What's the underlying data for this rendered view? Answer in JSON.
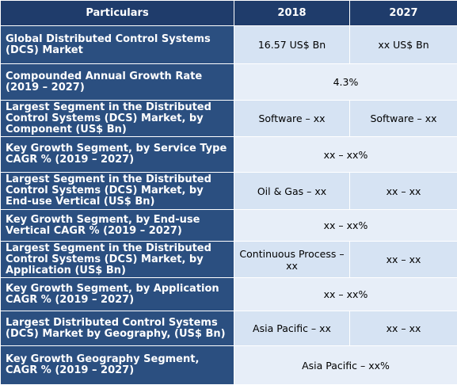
{
  "table": {
    "headers": [
      "Particulars",
      "2018",
      "2027"
    ],
    "rows": [
      {
        "label": "Global Distributed Control Systems (DCS) Market",
        "v2018": "16.57 US$ Bn",
        "v2027": "xx US$ Bn"
      },
      {
        "label": "Compounded Annual Growth Rate (2019 – 2027)",
        "merged": "4.3%"
      },
      {
        "label": "Largest Segment in the Distributed Control Systems (DCS) Market, by Component (US$ Bn)",
        "v2018": "Software – xx",
        "v2027": "Software – xx"
      },
      {
        "label": "Key Growth Segment, by Service Type CAGR % (2019 – 2027)",
        "merged": "xx – xx%"
      },
      {
        "label": "Largest Segment in the Distributed Control Systems (DCS) Market, by End-use Vertical (US$ Bn)",
        "v2018": "Oil & Gas – xx",
        "v2027": "xx – xx"
      },
      {
        "label": "Key Growth Segment, by End-use Vertical CAGR % (2019 – 2027)",
        "merged": "xx – xx%"
      },
      {
        "label": "Largest Segment in the Distributed Control Systems (DCS) Market, by Application (US$ Bn)",
        "v2018": "Continuous Process – xx",
        "v2027": "xx – xx"
      },
      {
        "label": "Key Growth Segment, by Application CAGR % (2019 – 2027)",
        "merged": "xx – xx%"
      },
      {
        "label": "Largest Distributed Control Systems (DCS) Market by Geography, (US$ Bn)",
        "v2018": "Asia Pacific – xx",
        "v2027": "xx – xx"
      },
      {
        "label": "Key Growth Geography Segment, CAGR % (2019 – 2027)",
        "merged": "Asia Pacific – xx%"
      }
    ]
  }
}
